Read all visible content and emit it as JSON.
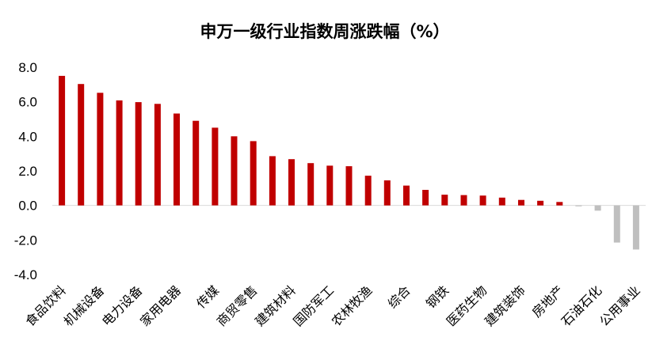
{
  "chart_data": {
    "type": "bar",
    "title": "申万一级行业指数周涨跌幅（%）",
    "xlabel": "",
    "ylabel": "",
    "ylim": [
      -4.0,
      8.0
    ],
    "yticks": [
      "8.0",
      "6.0",
      "4.0",
      "2.0",
      "0.0",
      "-2.0",
      "-4.0"
    ],
    "grid": false,
    "legend": "none",
    "colors": {
      "positive": "#C00000",
      "negative": "#BFBFBF"
    },
    "categories": [
      "食品饮料",
      "",
      "机械设备",
      "",
      "电力设备",
      "",
      "家用电器",
      "",
      "传媒",
      "",
      "商贸零售",
      "",
      "建筑材料",
      "",
      "国防军工",
      "",
      "农林牧渔",
      "",
      "综合",
      "",
      "钢铁",
      "",
      "医药生物",
      "",
      "建筑装饰",
      "",
      "房地产",
      "",
      "石油石化",
      "",
      "公用事业"
    ],
    "values": [
      7.5,
      7.03,
      6.52,
      6.08,
      5.98,
      5.88,
      5.32,
      4.9,
      4.5,
      4.0,
      3.72,
      2.85,
      2.68,
      2.45,
      2.3,
      2.27,
      1.72,
      1.45,
      1.15,
      0.9,
      0.62,
      0.6,
      0.57,
      0.45,
      0.32,
      0.27,
      0.2,
      -0.05,
      -0.3,
      -2.15,
      -2.55
    ]
  }
}
